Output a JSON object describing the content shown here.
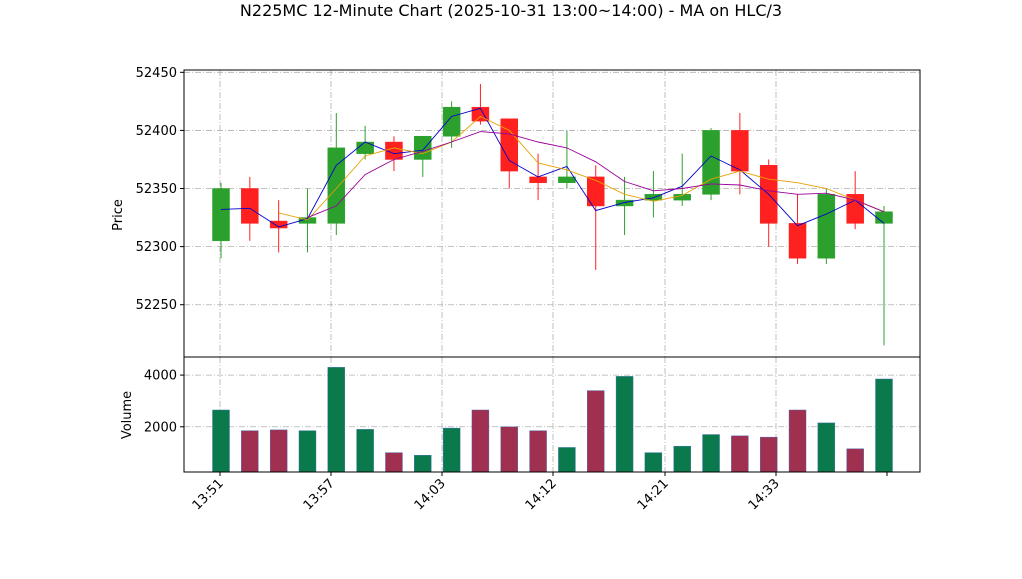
{
  "chart_data": {
    "type": "candlestick",
    "title": "N225MC 12-Minute Chart (2025-10-31 13:00~14:00) - MA on HLC/3",
    "price_axis": {
      "label": "Price",
      "ylim": [
        52205,
        52452
      ],
      "ticks": [
        52250,
        52300,
        52350,
        52400,
        52450
      ],
      "tick_labels": [
        "52250",
        "52300",
        "52350",
        "52400",
        "52450"
      ]
    },
    "volume_axis": {
      "label": "Volume",
      "ylim": [
        250,
        4700
      ],
      "ticks": [
        2000,
        4000
      ],
      "tick_labels": [
        "2000",
        "4000"
      ]
    },
    "x_tick_labels": [
      "13:51",
      "13:57",
      "14:03",
      "14:12",
      "14:21",
      "14:33"
    ],
    "grid": true,
    "candles": [
      {
        "open": 52305,
        "high": 52355,
        "low": 52290,
        "close": 52350,
        "volume": 2650
      },
      {
        "open": 52350,
        "high": 52360,
        "low": 52305,
        "close": 52320,
        "volume": 1850
      },
      {
        "open": 52322,
        "high": 52340,
        "low": 52295,
        "close": 52316,
        "volume": 1880
      },
      {
        "open": 52320,
        "high": 52350,
        "low": 52295,
        "close": 52325,
        "volume": 1850
      },
      {
        "open": 52320,
        "high": 52415,
        "low": 52310,
        "close": 52385,
        "volume": 4300
      },
      {
        "open": 52380,
        "high": 52404,
        "low": 52375,
        "close": 52390,
        "volume": 1900
      },
      {
        "open": 52390,
        "high": 52395,
        "low": 52365,
        "close": 52375,
        "volume": 1000
      },
      {
        "open": 52375,
        "high": 52395,
        "low": 52360,
        "close": 52395,
        "volume": 900
      },
      {
        "open": 52395,
        "high": 52425,
        "low": 52385,
        "close": 52420,
        "volume": 1950
      },
      {
        "open": 52420,
        "high": 52440,
        "low": 52405,
        "close": 52408,
        "volume": 2650
      },
      {
        "open": 52410,
        "high": 52410,
        "low": 52350,
        "close": 52365,
        "volume": 2000
      },
      {
        "open": 52360,
        "high": 52380,
        "low": 52340,
        "close": 52355,
        "volume": 1850
      },
      {
        "open": 52355,
        "high": 52400,
        "low": 52350,
        "close": 52360,
        "volume": 1200
      },
      {
        "open": 52360,
        "high": 52370,
        "low": 52280,
        "close": 52335,
        "volume": 3400
      },
      {
        "open": 52335,
        "high": 52360,
        "low": 52310,
        "close": 52340,
        "volume": 3950
      },
      {
        "open": 52340,
        "high": 52365,
        "low": 52325,
        "close": 52345,
        "volume": 1000
      },
      {
        "open": 52340,
        "high": 52380,
        "low": 52335,
        "close": 52345,
        "volume": 1250
      },
      {
        "open": 52345,
        "high": 52402,
        "low": 52340,
        "close": 52400,
        "volume": 1700
      },
      {
        "open": 52400,
        "high": 52415,
        "low": 52345,
        "close": 52365,
        "volume": 1650
      },
      {
        "open": 52370,
        "high": 52375,
        "low": 52300,
        "close": 52320,
        "volume": 1600
      },
      {
        "open": 52320,
        "high": 52345,
        "low": 52285,
        "close": 52290,
        "volume": 2650
      },
      {
        "open": 52290,
        "high": 52350,
        "low": 52285,
        "close": 52345,
        "volume": 2150
      },
      {
        "open": 52345,
        "high": 52365,
        "low": 52315,
        "close": 52320,
        "volume": 1150
      },
      {
        "open": 52320,
        "high": 52335,
        "low": 52215,
        "close": 52330,
        "volume": 3850
      }
    ],
    "ma_lines": [
      {
        "color": "#0000cc",
        "values": [
          52332,
          52333,
          52317,
          52324,
          52370,
          52390,
          52380,
          52383,
          52412,
          52419,
          52374,
          52360,
          52369,
          52331,
          52338,
          52342,
          52352,
          52378,
          52366,
          52345,
          52318,
          52328,
          52340,
          52320
        ]
      },
      {
        "color": "#e8a000",
        "values": [
          null,
          null,
          52329,
          52323,
          52350,
          52378,
          52385,
          52380,
          52390,
          52412,
          52400,
          52372,
          52366,
          52357,
          52345,
          52339,
          52344,
          52358,
          52365,
          52358,
          52355,
          52350,
          52340,
          52330
        ]
      },
      {
        "color": "#990099",
        "values": [
          null,
          null,
          null,
          52325,
          52335,
          52362,
          52375,
          52382,
          52390,
          52399,
          52397,
          52390,
          52385,
          52373,
          52356,
          52348,
          52350,
          52354,
          52353,
          52348,
          52345,
          52346,
          52340,
          52330
        ]
      }
    ],
    "colors": {
      "up": "#2ca02c",
      "down": "#ff2020",
      "volume_up": "#0a7a4c",
      "volume_down": "#a03050"
    }
  }
}
